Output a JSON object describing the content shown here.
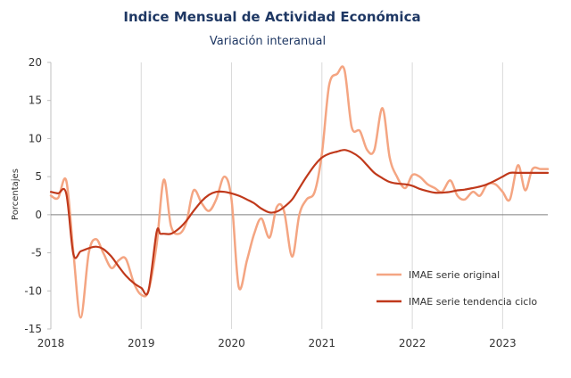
{
  "chart_data": {
    "type": "line",
    "title": "Indice Mensual de  Actividad Económica",
    "subtitle": "Variación interanual",
    "xlabel": "",
    "ylabel": "Porcentajes",
    "xlim": [
      2018,
      2023.5
    ],
    "ylim": [
      -15,
      20
    ],
    "yticks": [
      -15,
      -10,
      -5,
      0,
      5,
      10,
      15,
      20
    ],
    "xticks": [
      "2018",
      "2019",
      "2020",
      "2021",
      "2022",
      "2023"
    ],
    "grid": {
      "vertical": true,
      "horizontal": false
    },
    "zero_line": true,
    "legend": {
      "position": "bottom-right"
    },
    "series": [
      {
        "name": "IMAE serie original",
        "color": "#f4a582",
        "x": [
          2018.0,
          2018.08,
          2018.17,
          2018.25,
          2018.33,
          2018.42,
          2018.5,
          2018.58,
          2018.67,
          2018.75,
          2018.83,
          2018.92,
          2019.0,
          2019.08,
          2019.17,
          2019.25,
          2019.33,
          2019.42,
          2019.5,
          2019.58,
          2019.67,
          2019.75,
          2019.83,
          2019.92,
          2020.0,
          2020.08,
          2020.17,
          2020.25,
          2020.33,
          2020.42,
          2020.5,
          2020.58,
          2020.67,
          2020.75,
          2020.83,
          2020.92,
          2021.0,
          2021.08,
          2021.17,
          2021.25,
          2021.33,
          2021.42,
          2021.5,
          2021.58,
          2021.67,
          2021.75,
          2021.83,
          2021.92,
          2022.0,
          2022.08,
          2022.17,
          2022.25,
          2022.33,
          2022.42,
          2022.5,
          2022.58,
          2022.67,
          2022.75,
          2022.83,
          2022.92,
          2023.0,
          2023.08,
          2023.17,
          2023.25,
          2023.33,
          2023.42,
          2023.5
        ],
        "values": [
          2.5,
          2.2,
          4.5,
          -5.0,
          -13.5,
          -5.0,
          -3.2,
          -5.0,
          -7.0,
          -6.0,
          -5.8,
          -9.0,
          -10.5,
          -10.0,
          -4.0,
          4.6,
          -1.5,
          -2.5,
          -1.0,
          3.2,
          1.5,
          0.5,
          2.0,
          5.0,
          2.0,
          -9.5,
          -6.0,
          -2.5,
          -0.5,
          -3.0,
          1.0,
          0.5,
          -5.5,
          0.0,
          2.0,
          3.0,
          8.0,
          17.0,
          18.5,
          19.0,
          11.5,
          11.0,
          8.5,
          8.5,
          14.0,
          7.5,
          5.0,
          3.5,
          5.2,
          5.0,
          4.0,
          3.5,
          3.0,
          4.5,
          2.5,
          2.0,
          3.0,
          2.5,
          4.0,
          4.0,
          3.0,
          2.0,
          6.5,
          3.2,
          6.0,
          6.0,
          6.0
        ]
      },
      {
        "name": "IMAE serie  tendencia ciclo",
        "color": "#c0391b",
        "x": [
          2018.0,
          2018.08,
          2018.17,
          2018.25,
          2018.33,
          2018.42,
          2018.5,
          2018.58,
          2018.67,
          2018.75,
          2018.83,
          2018.92,
          2019.0,
          2019.08,
          2019.17,
          2019.21,
          2019.25,
          2019.33,
          2019.42,
          2019.5,
          2019.58,
          2019.67,
          2019.75,
          2019.83,
          2019.92,
          2020.0,
          2020.08,
          2020.17,
          2020.25,
          2020.33,
          2020.42,
          2020.5,
          2020.58,
          2020.67,
          2020.75,
          2020.83,
          2020.92,
          2021.0,
          2021.08,
          2021.17,
          2021.25,
          2021.33,
          2021.42,
          2021.5,
          2021.58,
          2021.67,
          2021.75,
          2021.83,
          2021.92,
          2022.0,
          2022.08,
          2022.17,
          2022.25,
          2022.33,
          2022.42,
          2022.5,
          2022.58,
          2022.67,
          2022.75,
          2022.83,
          2022.92,
          2023.0,
          2023.08,
          2023.17,
          2023.25,
          2023.33,
          2023.42,
          2023.5
        ],
        "values": [
          3.0,
          2.8,
          2.8,
          -5.2,
          -4.8,
          -4.4,
          -4.2,
          -4.5,
          -5.5,
          -6.8,
          -8.0,
          -9.0,
          -9.6,
          -10.0,
          -2.3,
          -2.5,
          -2.5,
          -2.5,
          -1.8,
          -0.8,
          0.5,
          1.8,
          2.6,
          3.0,
          3.0,
          2.8,
          2.5,
          2.0,
          1.5,
          0.8,
          0.3,
          0.4,
          1.0,
          2.0,
          3.5,
          5.0,
          6.5,
          7.5,
          8.0,
          8.3,
          8.5,
          8.2,
          7.5,
          6.5,
          5.5,
          4.8,
          4.3,
          4.1,
          4.0,
          3.8,
          3.4,
          3.1,
          2.9,
          2.9,
          3.0,
          3.2,
          3.3,
          3.5,
          3.7,
          4.0,
          4.5,
          5.0,
          5.5,
          5.5,
          5.5,
          5.5,
          5.5,
          5.5
        ]
      }
    ]
  }
}
